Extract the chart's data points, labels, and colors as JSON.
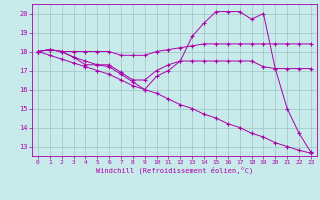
{
  "xlabel": "Windchill (Refroidissement éolien,°C)",
  "bg_color": "#c8eaea",
  "grid_color": "#9cc4c4",
  "line_color": "#aa00aa",
  "xlim": [
    -0.5,
    23.5
  ],
  "ylim": [
    12.5,
    20.5
  ],
  "yticks": [
    13,
    14,
    15,
    16,
    17,
    18,
    19,
    20
  ],
  "xticks": [
    0,
    1,
    2,
    3,
    4,
    5,
    6,
    7,
    8,
    9,
    10,
    11,
    12,
    13,
    14,
    15,
    16,
    17,
    18,
    19,
    20,
    21,
    22,
    23
  ],
  "series": [
    {
      "x": [
        0,
        1,
        2,
        3,
        4,
        5,
        6,
        7,
        8,
        9,
        10,
        11,
        12,
        13,
        14,
        15,
        16,
        17,
        18,
        19,
        20,
        21,
        22,
        23
      ],
      "y": [
        18.0,
        18.1,
        18.0,
        18.0,
        18.0,
        18.0,
        18.0,
        17.8,
        17.8,
        17.8,
        18.0,
        18.1,
        18.2,
        18.3,
        18.4,
        18.4,
        18.4,
        18.4,
        18.4,
        18.4,
        18.4,
        18.4,
        18.4,
        18.4
      ]
    },
    {
      "x": [
        0,
        1,
        2,
        3,
        4,
        5,
        6,
        7,
        8,
        9,
        10,
        11,
        12,
        13,
        14,
        15,
        16,
        17,
        18,
        19,
        20,
        21,
        22,
        23
      ],
      "y": [
        18.0,
        18.1,
        18.0,
        17.7,
        17.5,
        17.3,
        17.3,
        16.9,
        16.5,
        16.5,
        17.0,
        17.3,
        17.5,
        17.5,
        17.5,
        17.5,
        17.5,
        17.5,
        17.5,
        17.2,
        17.1,
        17.1,
        17.1,
        17.1
      ]
    },
    {
      "x": [
        0,
        1,
        2,
        3,
        4,
        5,
        6,
        7,
        8,
        9,
        10,
        11,
        12,
        13,
        14,
        15,
        16,
        17,
        18,
        19,
        20,
        21,
        22,
        23
      ],
      "y": [
        18.0,
        18.1,
        18.0,
        17.7,
        17.3,
        17.3,
        17.2,
        16.8,
        16.4,
        16.0,
        16.7,
        17.0,
        17.5,
        18.8,
        19.5,
        20.1,
        20.1,
        20.1,
        19.7,
        20.0,
        17.1,
        15.0,
        13.7,
        12.7
      ]
    },
    {
      "x": [
        0,
        1,
        2,
        3,
        4,
        5,
        6,
        7,
        8,
        9,
        10,
        11,
        12,
        13,
        14,
        15,
        16,
        17,
        18,
        19,
        20,
        21,
        22,
        23
      ],
      "y": [
        18.0,
        17.8,
        17.6,
        17.4,
        17.2,
        17.0,
        16.8,
        16.5,
        16.2,
        16.0,
        15.8,
        15.5,
        15.2,
        15.0,
        14.7,
        14.5,
        14.2,
        14.0,
        13.7,
        13.5,
        13.2,
        13.0,
        12.8,
        12.65
      ]
    }
  ]
}
